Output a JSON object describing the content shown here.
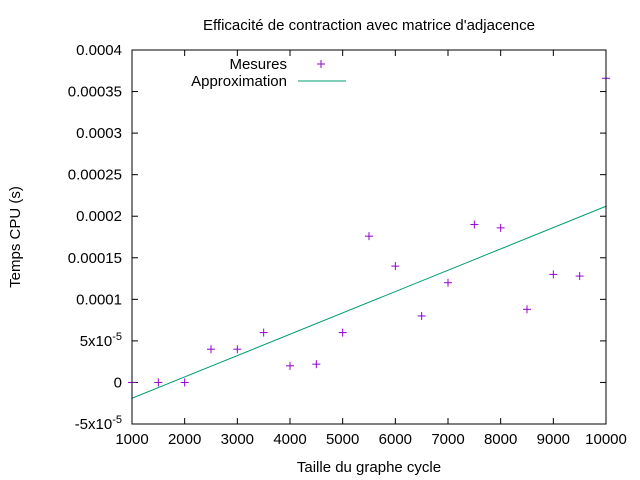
{
  "chart_data": {
    "type": "scatter",
    "title": "Efficacité de contraction avec matrice d'adjacence",
    "xlabel": "Taille du graphe cycle",
    "ylabel": "Temps CPU (s)",
    "xlim": [
      1000,
      10000
    ],
    "ylim": [
      -5e-05,
      0.0004
    ],
    "x_ticks": [
      1000,
      2000,
      3000,
      4000,
      5000,
      6000,
      7000,
      8000,
      9000,
      10000
    ],
    "x_tick_labels": [
      "1000",
      "2000",
      "3000",
      "4000",
      "5000",
      "6000",
      "7000",
      "8000",
      "9000",
      "10000"
    ],
    "y_ticks": [
      -5e-05,
      0,
      5e-05,
      0.0001,
      0.00015,
      0.0002,
      0.00025,
      0.0003,
      0.00035,
      0.0004
    ],
    "y_tick_labels": [
      {
        "base": "-5x10",
        "exp": "-5"
      },
      {
        "base": "0",
        "exp": ""
      },
      {
        "base": "5x10",
        "exp": "-5"
      },
      {
        "base": "0.0001",
        "exp": ""
      },
      {
        "base": "0.00015",
        "exp": ""
      },
      {
        "base": "0.0002",
        "exp": ""
      },
      {
        "base": "0.00025",
        "exp": ""
      },
      {
        "base": "0.0003",
        "exp": ""
      },
      {
        "base": "0.00035",
        "exp": ""
      },
      {
        "base": "0.0004",
        "exp": ""
      }
    ],
    "legend_position": "top-left",
    "grid": false,
    "series": [
      {
        "name": "Mesures",
        "kind": "points",
        "color": "#9400d3",
        "x": [
          1000,
          1500,
          2000,
          2500,
          3000,
          3500,
          4000,
          4500,
          5000,
          5500,
          6000,
          6500,
          7000,
          7500,
          8000,
          8500,
          9000,
          9500,
          10000
        ],
        "y": [
          0,
          0,
          0,
          4e-05,
          4e-05,
          6e-05,
          2e-05,
          2.2e-05,
          6e-05,
          0.000176,
          0.00014,
          8e-05,
          0.00012,
          0.00019,
          0.000186,
          8.8e-05,
          0.00013,
          0.000128,
          0.000366
        ]
      },
      {
        "name": "Approximation",
        "kind": "line",
        "color": "#009e73",
        "x": [
          1000,
          10000
        ],
        "y": [
          -1.9e-05,
          0.000212
        ]
      }
    ]
  }
}
